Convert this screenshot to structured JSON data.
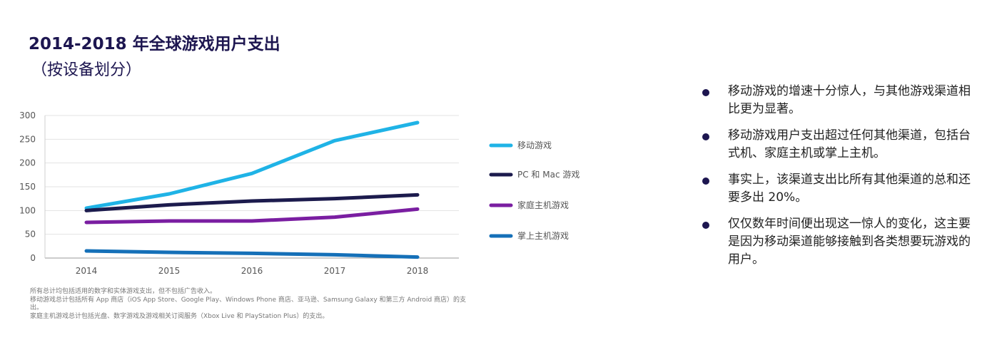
{
  "title": "2014-2018 年全球游戏用户支出",
  "subtitle": "（按设备划分）",
  "chart_data": {
    "type": "line",
    "x": [
      "2014",
      "2015",
      "2016",
      "2017",
      "2018"
    ],
    "yticks": [
      "0",
      "50",
      "100",
      "150",
      "200",
      "250",
      "300"
    ],
    "ylim": [
      0,
      300
    ],
    "grid": true,
    "legend_position": "right",
    "series": [
      {
        "name": "移动游戏",
        "color": "#1fb3e6",
        "values": [
          105,
          135,
          178,
          247,
          285
        ]
      },
      {
        "name": "PC 和 Mac 游戏",
        "color": "#1c1b4d",
        "values": [
          100,
          112,
          120,
          125,
          133
        ]
      },
      {
        "name": "家庭主机游戏",
        "color": "#7a1ea1",
        "values": [
          75,
          78,
          78,
          86,
          103
        ]
      },
      {
        "name": "掌上主机游戏",
        "color": "#1570b8",
        "values": [
          15,
          12,
          10,
          7,
          2
        ]
      }
    ]
  },
  "footnotes": [
    "所有总计均包括适用的数字和实体游戏支出，但不包括广告收入。",
    "移动游戏总计包括所有 App 商店（iOS App Store、Google Play、Windows Phone 商店、亚马逊、Samsung Galaxy 和第三方 Android 商店）的支出。",
    "家庭主机游戏总计包括光盘、数字游戏及游戏相关订阅服务（Xbox Live 和 PlayStation Plus）的支出。"
  ],
  "bullets": [
    "移动游戏的增速十分惊人，与其他游戏渠道相比更为显著。",
    "移动游戏用户支出超过任何其他渠道，包括台式机、家庭主机或掌上主机。",
    "事实上，该渠道支出比所有其他渠道的总和还要多出 20%。",
    "仅仅数年时间便出现这一惊人的变化，这主要是因为移动渠道能够接触到各类想要玩游戏的用户。"
  ]
}
